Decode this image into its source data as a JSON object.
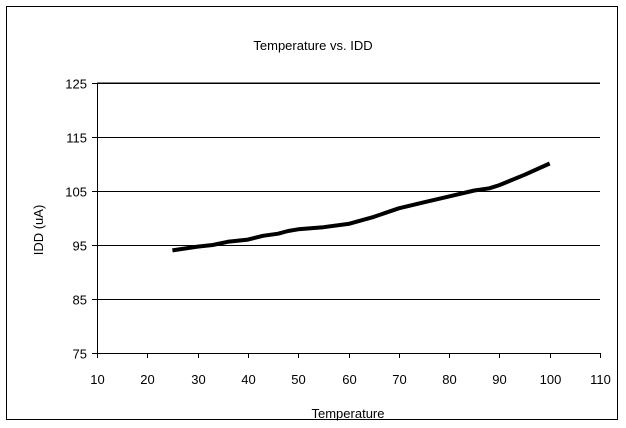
{
  "chart_data": {
    "type": "line",
    "title": "Temperature vs. IDD",
    "xlabel": "Temperature",
    "ylabel": "IDD (uA)",
    "xlim": [
      10,
      110
    ],
    "ylim": [
      75,
      125
    ],
    "xticks": [
      10,
      20,
      30,
      40,
      50,
      60,
      70,
      80,
      90,
      100,
      110
    ],
    "yticks": [
      75,
      85,
      95,
      105,
      115,
      125
    ],
    "grid": "horizontal",
    "legend": "none",
    "series": [
      {
        "color": "#000000",
        "x": [
          25,
          30,
          33,
          36,
          40,
          43,
          46,
          48,
          50,
          55,
          60,
          65,
          70,
          75,
          80,
          85,
          88,
          90,
          95,
          100
        ],
        "y": [
          94.0,
          94.7,
          95.0,
          95.6,
          96.0,
          96.7,
          97.1,
          97.6,
          97.9,
          98.3,
          98.9,
          100.2,
          101.8,
          102.9,
          104.0,
          105.1,
          105.5,
          106.1,
          108.0,
          110.1
        ]
      }
    ]
  }
}
